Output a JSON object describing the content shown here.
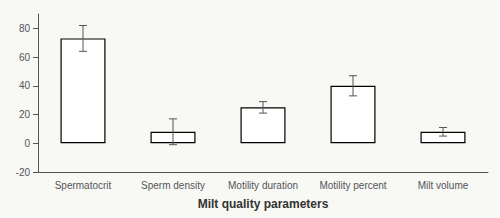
{
  "chart_data": {
    "type": "bar",
    "categories": [
      "Spermatocrit",
      "Sperm density",
      "Motility duration",
      "Motility percent",
      "Milt volume"
    ],
    "values": [
      73,
      8,
      25,
      40,
      8
    ],
    "errors": [
      9,
      9,
      4,
      7,
      3
    ],
    "color": "#ffffff",
    "xlabel": "Milt quality parameters",
    "ylim": [
      -20,
      90
    ],
    "yticks": [
      -20,
      0,
      20,
      40,
      60,
      80
    ],
    "grid": false
  }
}
